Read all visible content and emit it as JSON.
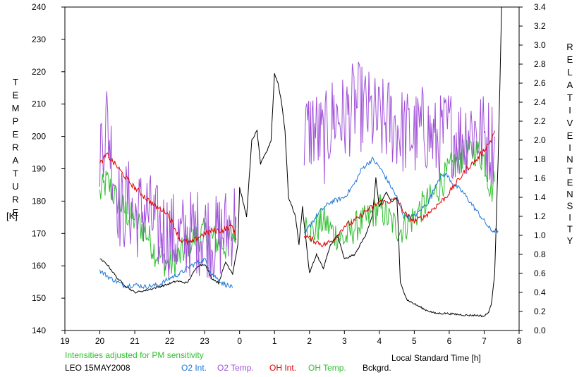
{
  "chart_data": {
    "type": "line",
    "title": "",
    "xlabel": "Local Standard Time [h]",
    "ylabel_left_letters": [
      "T",
      "E",
      "M",
      "P",
      "E",
      "R",
      "A",
      "T",
      "U",
      "R",
      "E"
    ],
    "ylabel_left_unit": "[K]",
    "ylabel_right_words": [
      [
        "R",
        "E",
        "L",
        "A",
        "T",
        "I",
        "V",
        "E"
      ],
      [
        "I",
        "N",
        "T",
        "E",
        "N",
        "S",
        "I",
        "T",
        "Y"
      ]
    ],
    "note": "Intensities adjusted for PM sensitivity",
    "site_date": "LEO 15MAY2008",
    "x_range": [
      19,
      32
    ],
    "x_tick_labels": [
      "19",
      "20",
      "21",
      "22",
      "23",
      "0",
      "1",
      "2",
      "3",
      "4",
      "5",
      "6",
      "7",
      "8"
    ],
    "y_left_range": [
      140,
      240
    ],
    "y_left_ticks": [
      "140",
      "150",
      "160",
      "170",
      "180",
      "190",
      "200",
      "210",
      "220",
      "230",
      "240"
    ],
    "y_right_range": [
      0,
      3.4
    ],
    "y_right_ticks": [
      "0.0",
      "0.2",
      "0.4",
      "0.6",
      "0.8",
      "1.0",
      "1.2",
      "1.4",
      "1.6",
      "1.8",
      "2.0",
      "2.2",
      "2.4",
      "2.6",
      "2.8",
      "3.0",
      "3.2",
      "3.4"
    ],
    "grid": false,
    "colors": {
      "o2_int": "#1e78d8",
      "o2_temp": "#a050d8",
      "oh_int": "#e00000",
      "oh_temp": "#30c030",
      "bckgrd": "#000000",
      "note": "#30c030"
    },
    "series": [
      {
        "name": "O2 Int.",
        "axis": "right",
        "key": "o2_int",
        "segments": [
          [
            [
              20.0,
              0.63
            ],
            [
              20.3,
              0.55
            ],
            [
              20.7,
              0.47
            ],
            [
              21.0,
              0.48
            ],
            [
              21.3,
              0.46
            ],
            [
              21.7,
              0.48
            ],
            [
              22.0,
              0.55
            ],
            [
              22.3,
              0.6
            ],
            [
              22.6,
              0.68
            ],
            [
              23.0,
              0.75
            ],
            [
              23.2,
              0.6
            ],
            [
              23.5,
              0.5
            ],
            [
              23.8,
              0.45
            ]
          ],
          [
            [
              25.85,
              1.0
            ],
            [
              26.0,
              1.1
            ],
            [
              26.3,
              1.25
            ],
            [
              26.6,
              1.35
            ],
            [
              27.0,
              1.4
            ],
            [
              27.3,
              1.55
            ],
            [
              27.5,
              1.7
            ],
            [
              27.8,
              1.8
            ],
            [
              28.0,
              1.72
            ],
            [
              28.2,
              1.6
            ],
            [
              28.5,
              1.4
            ],
            [
              28.7,
              1.2
            ],
            [
              29.0,
              1.2
            ],
            [
              29.4,
              1.35
            ],
            [
              29.7,
              1.6
            ],
            [
              29.9,
              1.65
            ],
            [
              30.1,
              1.55
            ],
            [
              30.4,
              1.45
            ],
            [
              30.7,
              1.3
            ],
            [
              31.0,
              1.15
            ],
            [
              31.2,
              1.05
            ],
            [
              31.4,
              1.05
            ]
          ]
        ]
      },
      {
        "name": "O2 Temp.",
        "axis": "left",
        "key": "o2_temp",
        "segments": [
          [
            [
              20.0,
              197
            ],
            [
              20.2,
              205
            ],
            [
              20.4,
              190
            ],
            [
              20.6,
              176
            ],
            [
              20.8,
              180
            ],
            [
              21.0,
              175
            ],
            [
              21.3,
              178
            ],
            [
              21.6,
              172
            ],
            [
              22.0,
              170
            ],
            [
              22.3,
              168
            ],
            [
              22.6,
              170
            ],
            [
              23.0,
              171
            ],
            [
              23.3,
              168
            ],
            [
              23.7,
              172
            ],
            [
              23.9,
              175
            ]
          ],
          [
            [
              25.85,
              200
            ],
            [
              26.1,
              203
            ],
            [
              26.4,
              198
            ],
            [
              26.7,
              207
            ],
            [
              27.0,
              205
            ],
            [
              27.3,
              210
            ],
            [
              27.6,
              208
            ],
            [
              28.0,
              204
            ],
            [
              28.3,
              205
            ],
            [
              28.6,
              202
            ],
            [
              29.0,
              200
            ],
            [
              29.3,
              203
            ],
            [
              29.6,
              198
            ],
            [
              30.0,
              202
            ],
            [
              30.3,
              199
            ],
            [
              30.6,
              203
            ],
            [
              31.0,
              200
            ],
            [
              31.2,
              198
            ],
            [
              31.3,
              200
            ]
          ]
        ]
      },
      {
        "name": "OH Int.",
        "axis": "right",
        "key": "oh_int",
        "segments": [
          [
            [
              20.0,
              1.75
            ],
            [
              20.2,
              1.85
            ],
            [
              20.5,
              1.72
            ],
            [
              20.8,
              1.58
            ],
            [
              21.0,
              1.5
            ],
            [
              21.3,
              1.4
            ],
            [
              21.6,
              1.3
            ],
            [
              21.9,
              1.25
            ],
            [
              22.1,
              1.12
            ],
            [
              22.3,
              0.95
            ],
            [
              22.6,
              0.92
            ],
            [
              22.9,
              1.0
            ],
            [
              23.2,
              1.05
            ],
            [
              23.5,
              1.05
            ],
            [
              23.8,
              1.1
            ],
            [
              23.9,
              0.95
            ]
          ],
          [
            [
              25.85,
              1.0
            ],
            [
              26.1,
              0.95
            ],
            [
              26.4,
              0.9
            ],
            [
              26.7,
              0.95
            ],
            [
              27.0,
              1.1
            ],
            [
              27.3,
              1.15
            ],
            [
              27.6,
              1.25
            ],
            [
              27.8,
              1.3
            ],
            [
              28.0,
              1.35
            ],
            [
              28.2,
              1.35
            ],
            [
              28.5,
              1.38
            ],
            [
              28.7,
              1.25
            ],
            [
              28.8,
              1.2
            ],
            [
              29.0,
              1.15
            ],
            [
              29.3,
              1.2
            ],
            [
              29.6,
              1.3
            ],
            [
              29.9,
              1.4
            ],
            [
              30.2,
              1.55
            ],
            [
              30.5,
              1.7
            ],
            [
              30.8,
              1.8
            ],
            [
              31.0,
              1.9
            ],
            [
              31.2,
              2.0
            ],
            [
              31.3,
              2.1
            ]
          ]
        ]
      },
      {
        "name": "OH Temp.",
        "axis": "left",
        "key": "oh_temp",
        "segments": [
          [
            [
              20.0,
              182
            ],
            [
              20.2,
              186
            ],
            [
              20.5,
              180
            ],
            [
              20.8,
              176
            ],
            [
              21.0,
              174
            ],
            [
              21.3,
              171
            ],
            [
              21.6,
              164
            ],
            [
              22.0,
              160
            ],
            [
              22.3,
              163
            ],
            [
              22.6,
              168
            ],
            [
              23.0,
              170
            ],
            [
              23.3,
              168
            ],
            [
              23.6,
              166
            ],
            [
              23.9,
              172
            ]
          ],
          [
            [
              25.85,
              175
            ],
            [
              26.1,
              170
            ],
            [
              26.4,
              174
            ],
            [
              26.7,
              170
            ],
            [
              27.0,
              168
            ],
            [
              27.3,
              172
            ],
            [
              27.6,
              174
            ],
            [
              28.0,
              178
            ],
            [
              28.3,
              174
            ],
            [
              28.6,
              171
            ],
            [
              28.9,
              174
            ],
            [
              29.2,
              178
            ],
            [
              29.5,
              181
            ],
            [
              29.8,
              186
            ],
            [
              30.1,
              191
            ],
            [
              30.4,
              194
            ],
            [
              30.7,
              196
            ],
            [
              31.0,
              193
            ],
            [
              31.2,
              183
            ],
            [
              31.3,
              186
            ]
          ]
        ]
      },
      {
        "name": "Bckgrd.",
        "axis": "right",
        "key": "bckgrd",
        "segments": [
          [
            [
              20.0,
              0.75
            ],
            [
              20.2,
              0.7
            ],
            [
              20.5,
              0.55
            ],
            [
              20.7,
              0.48
            ],
            [
              21.0,
              0.4
            ],
            [
              21.3,
              0.42
            ],
            [
              21.6,
              0.45
            ],
            [
              21.9,
              0.48
            ],
            [
              22.2,
              0.52
            ],
            [
              22.5,
              0.5
            ],
            [
              22.8,
              0.68
            ],
            [
              23.0,
              0.7
            ],
            [
              23.2,
              0.55
            ],
            [
              23.4,
              0.5
            ],
            [
              23.6,
              0.72
            ],
            [
              23.8,
              0.6
            ],
            [
              23.95,
              0.9
            ],
            [
              24.0,
              1.5
            ],
            [
              24.2,
              1.2
            ],
            [
              24.35,
              2.0
            ],
            [
              24.5,
              2.1
            ],
            [
              24.6,
              1.75
            ],
            [
              24.8,
              1.9
            ],
            [
              24.9,
              2.0
            ],
            [
              25.0,
              2.7
            ],
            [
              25.1,
              2.6
            ],
            [
              25.2,
              2.4
            ],
            [
              25.3,
              2.1
            ],
            [
              25.4,
              1.4
            ],
            [
              25.6,
              1.2
            ],
            [
              25.7,
              0.9
            ],
            [
              25.8,
              1.3
            ],
            [
              26.0,
              0.6
            ],
            [
              26.2,
              0.8
            ],
            [
              26.4,
              0.65
            ],
            [
              26.6,
              0.9
            ],
            [
              26.8,
              1.0
            ],
            [
              27.0,
              0.75
            ],
            [
              27.3,
              0.8
            ],
            [
              27.6,
              1.0
            ],
            [
              27.8,
              1.2
            ],
            [
              27.9,
              1.6
            ],
            [
              28.0,
              1.3
            ],
            [
              28.2,
              1.45
            ],
            [
              28.35,
              1.35
            ],
            [
              28.5,
              1.4
            ],
            [
              28.55,
              1.0
            ],
            [
              28.6,
              0.5
            ],
            [
              28.8,
              0.32
            ],
            [
              29.0,
              0.28
            ],
            [
              29.3,
              0.22
            ],
            [
              29.6,
              0.18
            ],
            [
              29.9,
              0.18
            ],
            [
              30.2,
              0.17
            ],
            [
              30.5,
              0.16
            ],
            [
              30.8,
              0.16
            ],
            [
              31.0,
              0.15
            ],
            [
              31.1,
              0.18
            ],
            [
              31.2,
              0.26
            ],
            [
              31.3,
              0.6
            ],
            [
              31.4,
              1.8
            ],
            [
              31.5,
              3.4
            ]
          ]
        ]
      }
    ]
  }
}
